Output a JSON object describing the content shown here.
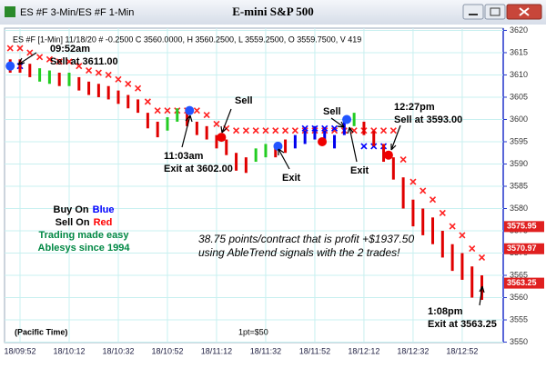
{
  "window": {
    "title_left": "ES #F 3-Min/ES #F 1-Min",
    "title_center": "E-mini S&P 500"
  },
  "chart_data": {
    "type": "price-bars",
    "info": "ES #F [1-Min] 11/18/20 # -0.2500 C 3560.0000, H 3560.2500, L 3559.2500, O 3559.7500, V 419",
    "xlim": [
      -6.3,
      196.7
    ],
    "xticks": [
      {
        "value": 0,
        "label": "18/09:52"
      },
      {
        "value": 20,
        "label": "18/10:12"
      },
      {
        "value": 40,
        "label": "18/10:32"
      },
      {
        "value": 60,
        "label": "18/10:52"
      },
      {
        "value": 80,
        "label": "18/11:12"
      },
      {
        "value": 100,
        "label": "18/11:32"
      },
      {
        "value": 120,
        "label": "18/11:52"
      },
      {
        "value": 140,
        "label": "18/12:12"
      },
      {
        "value": 160,
        "label": "18/12:32"
      },
      {
        "value": 180,
        "label": "18/12:52"
      }
    ],
    "ylim": [
      3549.5,
      3620.5
    ],
    "yticks": [
      3550,
      3555,
      3560,
      3565,
      3570,
      3575,
      3580,
      3585,
      3590,
      3595,
      3600,
      3605,
      3610,
      3615,
      3620
    ],
    "grid": true,
    "bars": {
      "x": [
        -4,
        0,
        4,
        8,
        12,
        16,
        20,
        24,
        28,
        32,
        36,
        40,
        44,
        48,
        52,
        56,
        60,
        64,
        68,
        72,
        76,
        80,
        84,
        88,
        92,
        96,
        100,
        104,
        108,
        112,
        116,
        120,
        124,
        128,
        132,
        136,
        140,
        144,
        148,
        152,
        156,
        160,
        164,
        168,
        172,
        176,
        180,
        184,
        188
      ],
      "high": [
        3613.5,
        3613.5,
        3612.5,
        3611.5,
        3611,
        3610.5,
        3610.5,
        3609.5,
        3608.5,
        3608,
        3607.5,
        3606.5,
        3605.5,
        3604.5,
        3601.5,
        3599.5,
        3600.5,
        3602.5,
        3601.5,
        3599.5,
        3598.5,
        3596.5,
        3595.5,
        3592.5,
        3591.5,
        3593.5,
        3594.5,
        3594.5,
        3595.5,
        3596.5,
        3597.5,
        3598.5,
        3597.5,
        3596.5,
        3599.5,
        3601.5,
        3599.5,
        3597.5,
        3594.5,
        3591.5,
        3587,
        3582,
        3580,
        3578,
        3575,
        3572,
        3570,
        3567,
        3565
      ],
      "low": [
        3610.5,
        3610.5,
        3609.5,
        3608.5,
        3608,
        3607.5,
        3607.5,
        3606.5,
        3605.5,
        3605,
        3604.5,
        3603.5,
        3602.5,
        3601.5,
        3598,
        3596,
        3597.5,
        3599.5,
        3598.5,
        3596.5,
        3595.5,
        3593.5,
        3592,
        3588.5,
        3588,
        3590.5,
        3591.5,
        3591.5,
        3592.5,
        3593.5,
        3594.5,
        3595.5,
        3594.5,
        3593.5,
        3596.5,
        3598.5,
        3596.5,
        3594,
        3590.5,
        3586.5,
        3580,
        3576,
        3574,
        3572,
        3569,
        3566,
        3564,
        3560,
        3559.5
      ],
      "colors": [
        "#e00000",
        "#e00000",
        "#e00000",
        "#22cc22",
        "#22cc22",
        "#e00000",
        "#22cc22",
        "#e00000",
        "#e00000",
        "#e00000",
        "#e00000",
        "#e00000",
        "#e00000",
        "#e00000",
        "#e00000",
        "#e00000",
        "#22cc22",
        "#22cc22",
        "#e00000",
        "#e00000",
        "#e00000",
        "#e00000",
        "#e00000",
        "#e00000",
        "#e00000",
        "#22cc22",
        "#22cc22",
        "#e00000",
        "#e00000",
        "#0000ee",
        "#0000ee",
        "#0000ee",
        "#0000ee",
        "#0000ee",
        "#0000ee",
        "#22cc22",
        "#e00000",
        "#e00000",
        "#e00000",
        "#e00000",
        "#e00000",
        "#e00000",
        "#e00000",
        "#e00000",
        "#e00000",
        "#e00000",
        "#e00000",
        "#e00000",
        "#e00000"
      ]
    },
    "stops": [
      {
        "color": "#ff2020",
        "values": [
          3616,
          3616,
          3615,
          3614,
          3613.5,
          3613,
          3613,
          3612,
          3611,
          3610.5,
          3610,
          3609,
          3608,
          3607,
          3604,
          3602,
          3602,
          3602,
          3602,
          3602,
          3601,
          3599,
          3598,
          3597.5,
          3597.5,
          3597.5,
          3597.5,
          3597.5,
          3597.5,
          3597.5,
          3597.5,
          3597.5,
          3597.5,
          3597.5,
          3597.5,
          3597.5,
          3597.5,
          3597.5,
          3597.5,
          3597.5,
          3591,
          3586,
          3584,
          3582,
          3579,
          3576,
          3574,
          3571,
          3569
        ]
      },
      {
        "color": "#0000ff",
        "values": [
          3612,
          3612,
          null,
          null,
          null,
          null,
          null,
          null,
          null,
          null,
          null,
          null,
          null,
          null,
          null,
          null,
          null,
          null,
          null,
          null,
          null,
          null,
          null,
          null,
          null,
          null,
          null,
          null,
          null,
          null,
          3598,
          3598,
          3598,
          3598,
          null,
          null,
          3594,
          3594,
          3594,
          null,
          null,
          null,
          null,
          null,
          null,
          null,
          null,
          null,
          null
        ]
      }
    ],
    "signals": {
      "x": [
        -4,
        69,
        82,
        105,
        123,
        133,
        150
      ],
      "values": [
        3612,
        3602,
        3596,
        3594,
        3595,
        3600,
        3592
      ],
      "colors": [
        "#2255ff",
        "#2255ff",
        "#ee0000",
        "#2255ff",
        "#ee0000",
        "#2255ff",
        "#ee0000"
      ]
    },
    "price_tags": [
      3575.95,
      3570.97,
      3563.25
    ],
    "rules": [
      {
        "text": "Buy On",
        "accent": "Blue",
        "color": "#0000ff"
      },
      {
        "text": "Sell On",
        "accent": "Red",
        "color": "#ff0000"
      }
    ],
    "annotations": [
      {
        "text": "09:52am",
        "color": "#000000"
      },
      {
        "text": "Sell at 3611.00",
        "color": "#000000"
      },
      {
        "text": "Sell",
        "color": "#000000"
      },
      {
        "text": "11:03am",
        "color": "#000000"
      },
      {
        "text": "Exit at 3602.00",
        "color": "#000000"
      },
      {
        "text": "Exit",
        "color": "#000000"
      },
      {
        "text": "Sell",
        "color": "#000000"
      },
      {
        "text": "Exit",
        "color": "#000000"
      },
      {
        "text": "12:27pm",
        "color": "#000000"
      },
      {
        "text": "Sell at 3593.00",
        "color": "#000000"
      },
      {
        "text": "1:08pm",
        "color": "#000000"
      },
      {
        "text": "Exit at 3563.25",
        "color": "#000000"
      },
      {
        "text": "Trading made easy",
        "color": "#008844"
      },
      {
        "text": "Ablesys since 1994",
        "color": "#008844"
      },
      {
        "text": "38.75 points/contract that is profit +$1937.50",
        "color": "#000000"
      },
      {
        "text": "using AbleTrend signals with the 2 trades!",
        "color": "#000000"
      },
      {
        "text": "(Pacific Time)",
        "color": "#000000"
      },
      {
        "text": "1pt=$50",
        "color": "#000000"
      }
    ]
  }
}
